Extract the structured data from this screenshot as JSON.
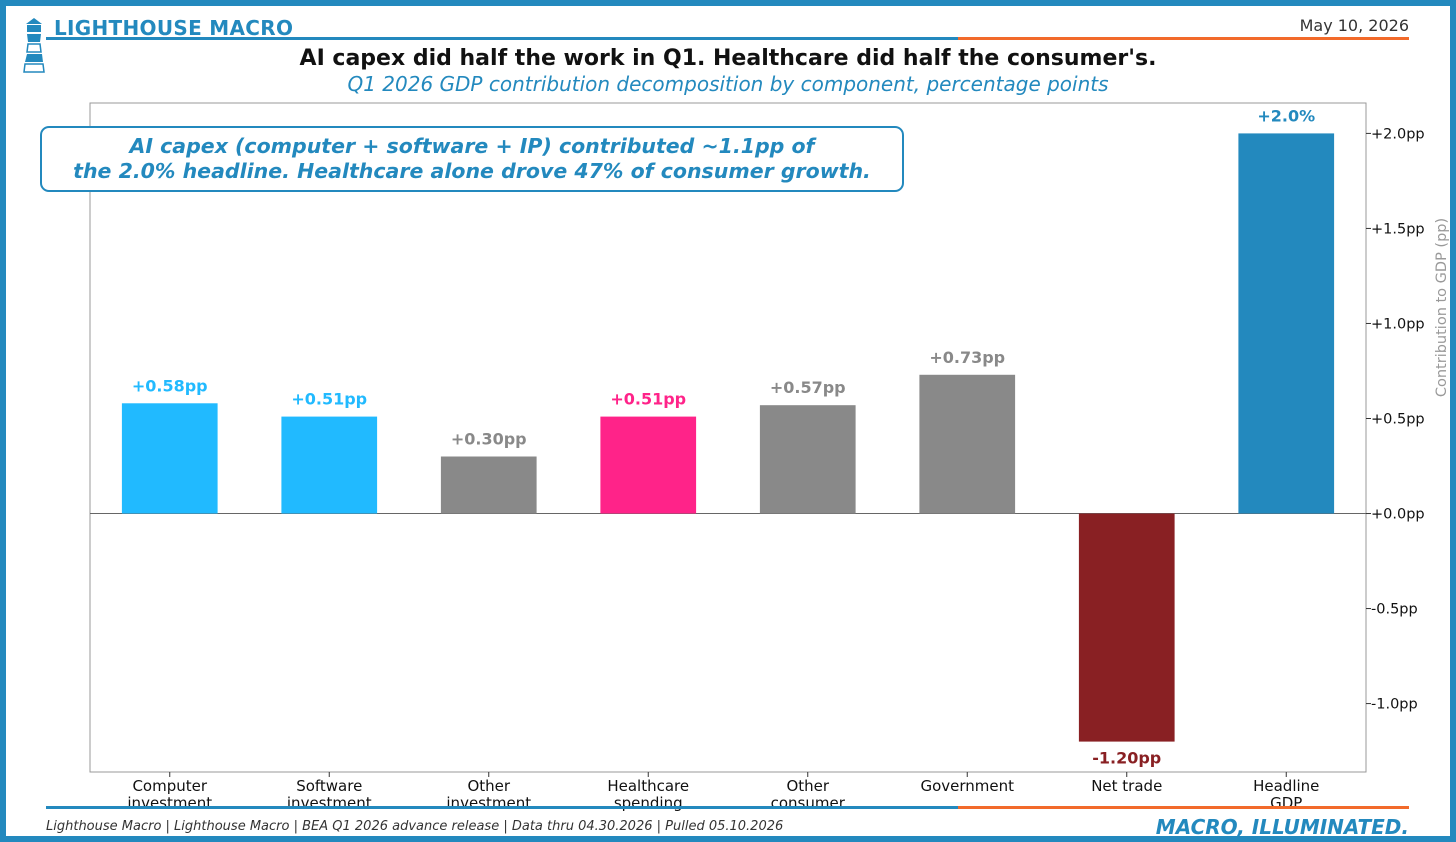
{
  "header": {
    "brand": "LIGHTHOUSE MACRO",
    "date": "May 10, 2026",
    "title": "AI capex did half the work in Q1. Healthcare did half the consumer's.",
    "subtitle": "Q1 2026 GDP contribution decomposition by component, percentage points"
  },
  "callout": {
    "line1": "AI capex (computer + software + IP) contributed ~1.1pp of",
    "line2": "the 2.0% headline. Healthcare alone drove 47% of consumer growth."
  },
  "footer": {
    "source": "Lighthouse Macro | Lighthouse Macro | BEA Q1 2026 advance release | Data thru 04.30.2026 | Pulled 05.10.2026",
    "tagline": "MACRO, ILLUMINATED."
  },
  "colors": {
    "brand_blue": "#2389be",
    "orange": "#f26a2a",
    "ai_cyan": "#21baff",
    "healthcare_pink": "#ff2389",
    "other_gray": "#898989",
    "net_trade_red": "#892023",
    "headline_blue": "#2389be"
  },
  "chart_data": {
    "type": "bar",
    "categories": [
      [
        "Computer",
        "investment"
      ],
      [
        "Software",
        "investment"
      ],
      [
        "Other",
        "investment"
      ],
      [
        "Healthcare",
        "spending"
      ],
      [
        "Other",
        "consumer"
      ],
      [
        "Government"
      ],
      [
        "Net trade"
      ],
      [
        "Headline",
        "GDP"
      ]
    ],
    "values": [
      0.58,
      0.51,
      0.3,
      0.51,
      0.57,
      0.73,
      -1.2,
      2.0
    ],
    "value_labels": [
      "+0.58pp",
      "+0.51pp",
      "+0.30pp",
      "+0.51pp",
      "+0.57pp",
      "+0.73pp",
      "-1.20pp",
      "+2.0%"
    ],
    "bar_colors": [
      "#21baff",
      "#21baff",
      "#898989",
      "#ff2389",
      "#898989",
      "#898989",
      "#892023",
      "#2389be"
    ],
    "label_colors": [
      "#21baff",
      "#21baff",
      "#898989",
      "#ff2389",
      "#898989",
      "#898989",
      "#892023",
      "#2389be"
    ],
    "ylabel": "Contribution to GDP (pp)",
    "y_axis_side": "right",
    "ylim": [
      -1.36,
      2.16
    ],
    "yticks": [
      -1.0,
      -0.5,
      0.0,
      0.5,
      1.0,
      1.5,
      2.0
    ],
    "ytick_labels": [
      "-1.0pp",
      "-0.5pp",
      "+0.0pp",
      "+0.5pp",
      "+1.0pp",
      "+1.5pp",
      "+2.0pp"
    ],
    "zero_line": true,
    "grid": false
  }
}
